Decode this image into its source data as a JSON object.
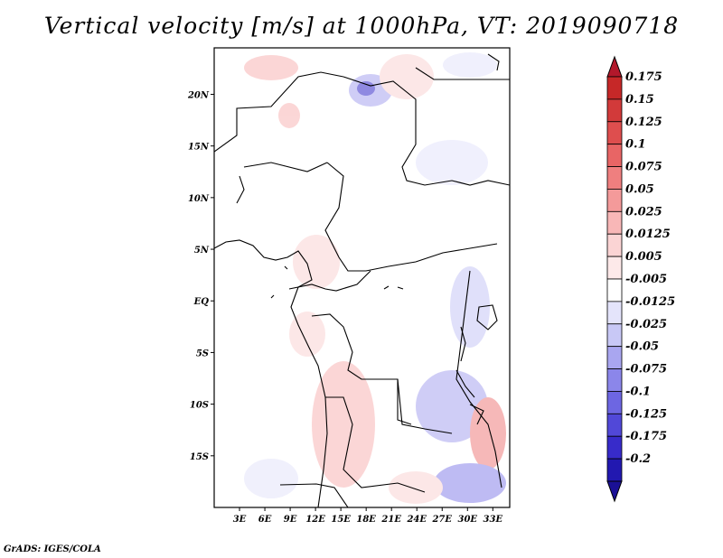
{
  "title": "Vertical velocity [m/s] at 1000hPa, VT: 2019090718",
  "credit": "GrADS: IGES/COLA",
  "map": {
    "lon_range": [
      0,
      35
    ],
    "lat_range": [
      -20,
      24.5
    ],
    "lat_labels": [
      {
        "lat": 20,
        "label": "20N"
      },
      {
        "lat": 15,
        "label": "15N"
      },
      {
        "lat": 10,
        "label": "10N"
      },
      {
        "lat": 5,
        "label": "5N"
      },
      {
        "lat": 0,
        "label": "EQ"
      },
      {
        "lat": -5,
        "label": "5S"
      },
      {
        "lat": -10,
        "label": "10S"
      },
      {
        "lat": -15,
        "label": "15S"
      }
    ],
    "lon_labels": [
      {
        "lon": 3,
        "label": "3E"
      },
      {
        "lon": 6,
        "label": "6E"
      },
      {
        "lon": 9,
        "label": "9E"
      },
      {
        "lon": 12,
        "label": "12E"
      },
      {
        "lon": 15,
        "label": "15E"
      },
      {
        "lon": 18,
        "label": "18E"
      },
      {
        "lon": 21,
        "label": "21E"
      },
      {
        "lon": 24,
        "label": "24E"
      },
      {
        "lon": 27,
        "label": "27E"
      },
      {
        "lon": 30,
        "label": "30E"
      },
      {
        "lon": 33,
        "label": "33E"
      }
    ]
  },
  "colorbar": {
    "over_color": "#b2182b",
    "under_color": "#1a1096",
    "levels": [
      {
        "label": "0.175",
        "color": "#c62828"
      },
      {
        "label": "0.15",
        "color": "#d23a3a"
      },
      {
        "label": "0.125",
        "color": "#de4e4e"
      },
      {
        "label": "0.1",
        "color": "#e86565"
      },
      {
        "label": "0.075",
        "color": "#ef7f7f"
      },
      {
        "label": "0.05",
        "color": "#f49a9a"
      },
      {
        "label": "0.025",
        "color": "#f8b7b7"
      },
      {
        "label": "0.0125",
        "color": "#fbd4d4"
      },
      {
        "label": "0.005",
        "color": "#fde9e9"
      },
      {
        "label": "-0.005",
        "color": "#ffffff"
      },
      {
        "label": "-0.0125",
        "color": "#e4e4fb"
      },
      {
        "label": "-0.025",
        "color": "#c8c8f6"
      },
      {
        "label": "-0.05",
        "color": "#a9a6f0"
      },
      {
        "label": "-0.075",
        "color": "#8b86ea"
      },
      {
        "label": "-0.1",
        "color": "#6d66e2"
      },
      {
        "label": "-0.125",
        "color": "#5148d8"
      },
      {
        "label": "-0.175",
        "color": "#372bca"
      },
      {
        "label": "-0.2",
        "color": "#2218b0"
      }
    ]
  }
}
